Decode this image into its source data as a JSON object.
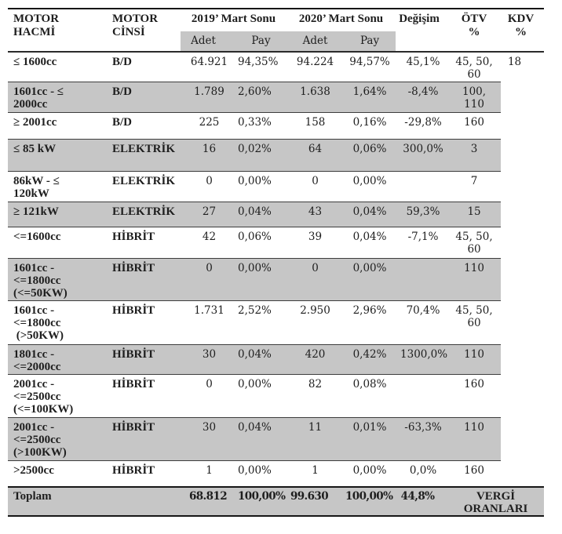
{
  "table": {
    "header": {
      "motor_hacmi": "MOTOR\nHACMİ",
      "motor_cinsi": "MOTOR\nCİNSİ",
      "group_2019": "2019’ Mart Sonu",
      "group_2020": "2020’ Mart Sonu",
      "sub_adet_2019": "Adet",
      "sub_pay_2019": "Pay",
      "sub_adet_2020": "Adet",
      "sub_pay_2020": "Pay",
      "degisim": "Değişim",
      "otv": "ÖTV\n%",
      "kdv": "KDV\n%"
    },
    "kdv_value": "18",
    "rows": [
      {
        "hacim": "≤ 1600cc",
        "cins": "B/D",
        "adet2019": "64.921",
        "pay2019": "94,35%",
        "adet2020": "94.224",
        "pay2020": "94,57%",
        "degisim": "45,1%",
        "otv": "45, 50,\n60"
      },
      {
        "hacim": "1601cc - ≤\n2000cc",
        "cins": "B/D",
        "adet2019": "1.789",
        "pay2019": "2,60%",
        "adet2020": "1.638",
        "pay2020": "1,64%",
        "degisim": "-8,4%",
        "otv": "100,\n110"
      },
      {
        "hacim": "≥ 2001cc",
        "cins": "B/D",
        "adet2019": "225",
        "pay2019": "0,33%",
        "adet2020": "158",
        "pay2020": "0,16%",
        "degisim": "-29,8%",
        "otv": "160"
      },
      {
        "hacim": "≤ 85 kW",
        "cins": "ELEKTRİK",
        "adet2019": "16",
        "pay2019": "0,02%",
        "adet2020": "64",
        "pay2020": "0,06%",
        "degisim": "300,0%",
        "otv": "3"
      },
      {
        "hacim": "86kW - ≤\n120kW",
        "cins": "ELEKTRİK",
        "adet2019": "0",
        "pay2019": "0,00%",
        "adet2020": "0",
        "pay2020": "0,00%",
        "degisim": "",
        "otv": "7"
      },
      {
        "hacim": "≥ 121kW",
        "cins": "ELEKTRİK",
        "adet2019": "27",
        "pay2019": "0,04%",
        "adet2020": "43",
        "pay2020": "0,04%",
        "degisim": "59,3%",
        "otv": "15"
      },
      {
        "hacim": "<=1600cc",
        "cins": "HİBRİT",
        "adet2019": "42",
        "pay2019": "0,06%",
        "adet2020": "39",
        "pay2020": "0,04%",
        "degisim": "-7,1%",
        "otv": "45, 50,\n60"
      },
      {
        "hacim": "1601cc -\n<=1800cc\n(<=50KW)",
        "cins": "HİBRİT",
        "adet2019": "0",
        "pay2019": "0,00%",
        "adet2020": "0",
        "pay2020": "0,00%",
        "degisim": "",
        "otv": "110"
      },
      {
        "hacim": "1601cc -\n<=1800cc\n (>50KW)",
        "cins": "HİBRİT",
        "adet2019": "1.731",
        "pay2019": "2,52%",
        "adet2020": "2.950",
        "pay2020": "2,96%",
        "degisim": "70,4%",
        "otv": "45, 50,\n60"
      },
      {
        "hacim": "1801cc -\n<=2000cc",
        "cins": "HİBRİT",
        "adet2019": "30",
        "pay2019": "0,04%",
        "adet2020": "420",
        "pay2020": "0,42%",
        "degisim": "1300,0%",
        "otv": "110"
      },
      {
        "hacim": "2001cc -\n<=2500cc\n(<=100KW)",
        "cins": "HİBRİT",
        "adet2019": "0",
        "pay2019": "0,00%",
        "adet2020": "82",
        "pay2020": "0,08%",
        "degisim": "",
        "otv": "160"
      },
      {
        "hacim": "2001cc -\n<=2500cc\n(>100KW)",
        "cins": "HİBRİT",
        "adet2019": "30",
        "pay2019": "0,04%",
        "adet2020": "11",
        "pay2020": "0,01%",
        "degisim": "-63,3%",
        "otv": "110"
      },
      {
        "hacim": ">2500cc",
        "cins": "HİBRİT",
        "adet2019": "1",
        "pay2019": "0,00%",
        "adet2020": "1",
        "pay2020": "0,00%",
        "degisim": "0,0%",
        "otv": "160"
      }
    ],
    "footer": {
      "label": "Toplam",
      "adet2019": "68.812",
      "pay2019": "100,00%",
      "adet2020": "99.630",
      "pay2020": "100,00%",
      "degisim": "44,8%",
      "vergi": "VERGİ\nORANLARI"
    }
  }
}
